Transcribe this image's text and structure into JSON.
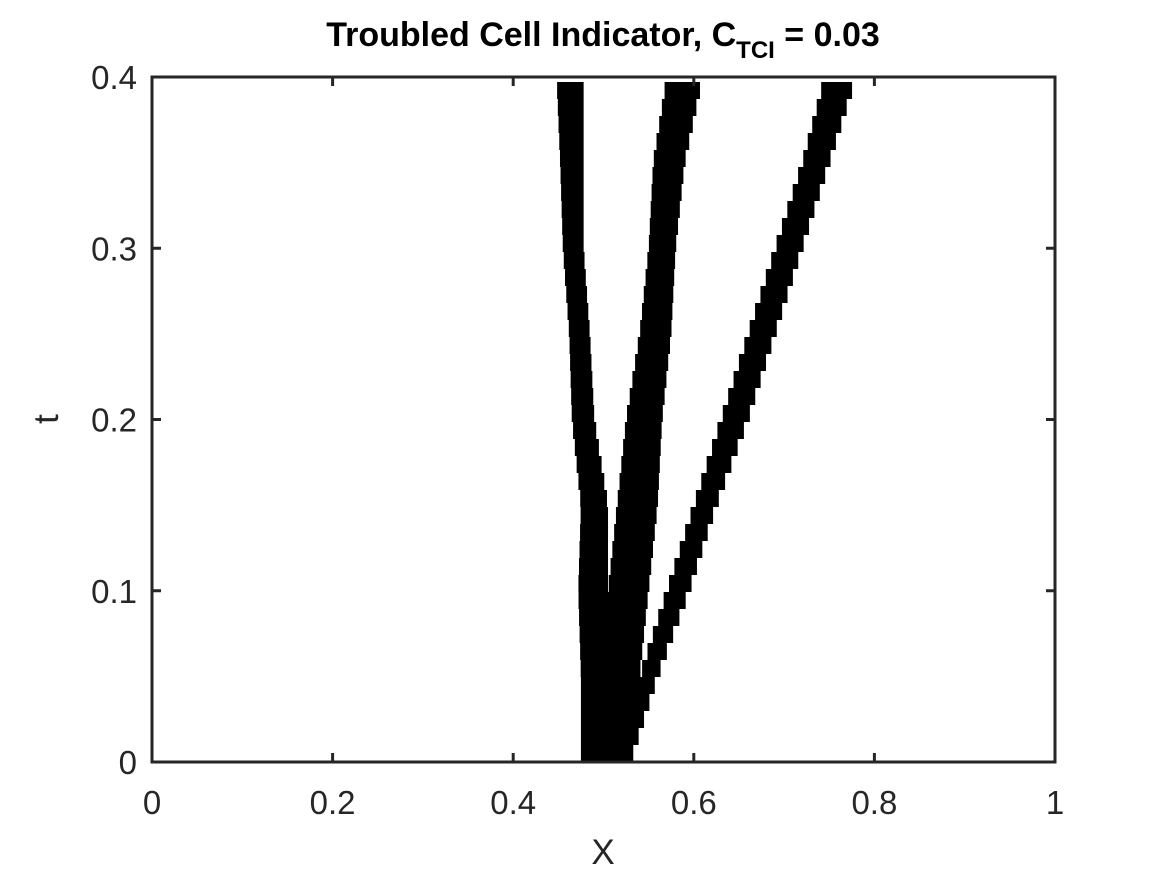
{
  "chart_data": {
    "type": "scatter",
    "title_main": "Troubled Cell Indicator, C",
    "title_subscript": "TCI",
    "title_tail": " = 0.03",
    "xlabel": "X",
    "ylabel": "t",
    "xlim": [
      0,
      1
    ],
    "ylim": [
      0,
      0.4
    ],
    "xticks": [
      0,
      0.2,
      0.4,
      0.6,
      0.8,
      1
    ],
    "xtick_labels": [
      "0",
      "0.2",
      "0.4",
      "0.6",
      "0.8",
      "1"
    ],
    "yticks": [
      0,
      0.1,
      0.2,
      0.3,
      0.4
    ],
    "ytick_labels": [
      "0",
      "0.1",
      "0.2",
      "0.3",
      "0.4"
    ],
    "grid": false,
    "legend": "none",
    "marker_color": "#000000",
    "bands": [
      {
        "points": [
          [
            0.0,
            0.475,
            0.515
          ],
          [
            0.05,
            0.475,
            0.51
          ],
          [
            0.1,
            0.472,
            0.505
          ],
          [
            0.15,
            0.475,
            0.505
          ],
          [
            0.2,
            0.465,
            0.49
          ],
          [
            0.25,
            0.462,
            0.485
          ],
          [
            0.3,
            0.455,
            0.478
          ],
          [
            0.35,
            0.452,
            0.478
          ],
          [
            0.4,
            0.448,
            0.478
          ]
        ]
      },
      {
        "points": [
          [
            0.0,
            0.485,
            0.525
          ],
          [
            0.05,
            0.49,
            0.54
          ],
          [
            0.1,
            0.505,
            0.55
          ],
          [
            0.15,
            0.515,
            0.56
          ],
          [
            0.2,
            0.525,
            0.565
          ],
          [
            0.25,
            0.54,
            0.575
          ],
          [
            0.3,
            0.55,
            0.58
          ],
          [
            0.35,
            0.555,
            0.59
          ],
          [
            0.4,
            0.57,
            0.61
          ]
        ]
      },
      {
        "points": [
          [
            0.0,
            0.5,
            0.53
          ],
          [
            0.05,
            0.54,
            0.56
          ],
          [
            0.1,
            0.57,
            0.595
          ],
          [
            0.15,
            0.6,
            0.625
          ],
          [
            0.2,
            0.63,
            0.66
          ],
          [
            0.25,
            0.66,
            0.69
          ],
          [
            0.3,
            0.69,
            0.72
          ],
          [
            0.35,
            0.72,
            0.75
          ],
          [
            0.4,
            0.745,
            0.78
          ]
        ]
      }
    ]
  }
}
